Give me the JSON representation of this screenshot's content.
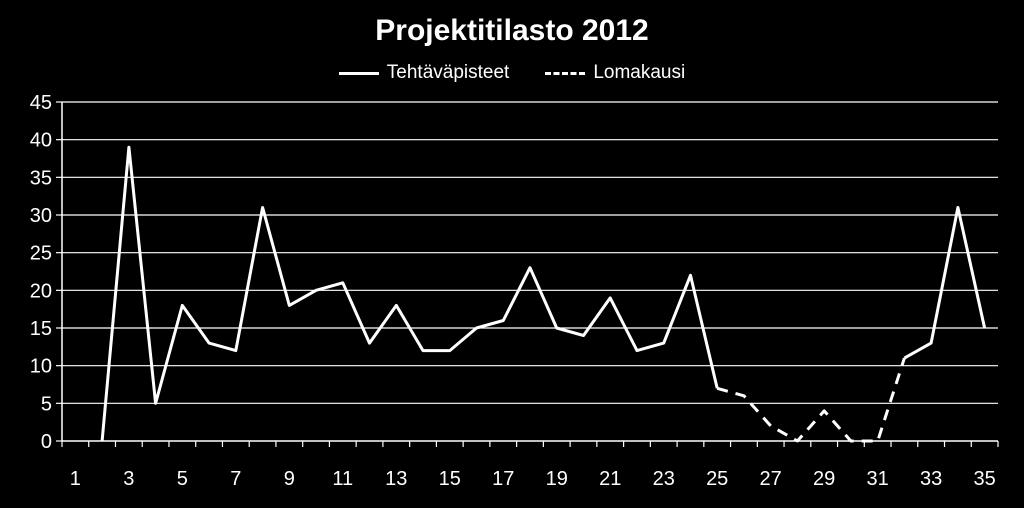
{
  "chart_data": {
    "type": "line",
    "title": "Projektitilasto 2012",
    "xlabel": "",
    "ylabel": "",
    "ylim": [
      0,
      45
    ],
    "xlim": [
      1,
      35
    ],
    "y_ticks": [
      0,
      5,
      10,
      15,
      20,
      25,
      30,
      35,
      40,
      45
    ],
    "x_ticks": [
      1,
      3,
      5,
      7,
      9,
      11,
      13,
      15,
      17,
      19,
      21,
      23,
      25,
      27,
      29,
      31,
      33,
      35
    ],
    "grid": true,
    "legend_position": "top",
    "colors": {
      "background": "#000000",
      "line": "#ffffff",
      "grid": "#ffffff"
    },
    "series": [
      {
        "name": "Tehtäväpisteet",
        "style": "solid",
        "x": [
          2,
          3,
          4,
          5,
          6,
          7,
          8,
          9,
          10,
          11,
          12,
          13,
          14,
          15,
          16,
          17,
          18,
          19,
          20,
          21,
          22,
          23,
          24,
          25
        ],
        "values": [
          0,
          39,
          5,
          18,
          13,
          12,
          31,
          18,
          20,
          21,
          13,
          18,
          12,
          12,
          15,
          16,
          23,
          15,
          14,
          19,
          12,
          13,
          22,
          7
        ]
      },
      {
        "name": "Lomakausi",
        "style": "dashed",
        "x": [
          25,
          26,
          27,
          28,
          29,
          30,
          31,
          32
        ],
        "values": [
          7,
          6,
          2,
          0,
          4,
          0,
          0,
          11
        ]
      },
      {
        "name": "",
        "style": "solid",
        "x": [
          32,
          33,
          34,
          35
        ],
        "values": [
          11,
          13,
          31,
          15
        ]
      }
    ]
  }
}
